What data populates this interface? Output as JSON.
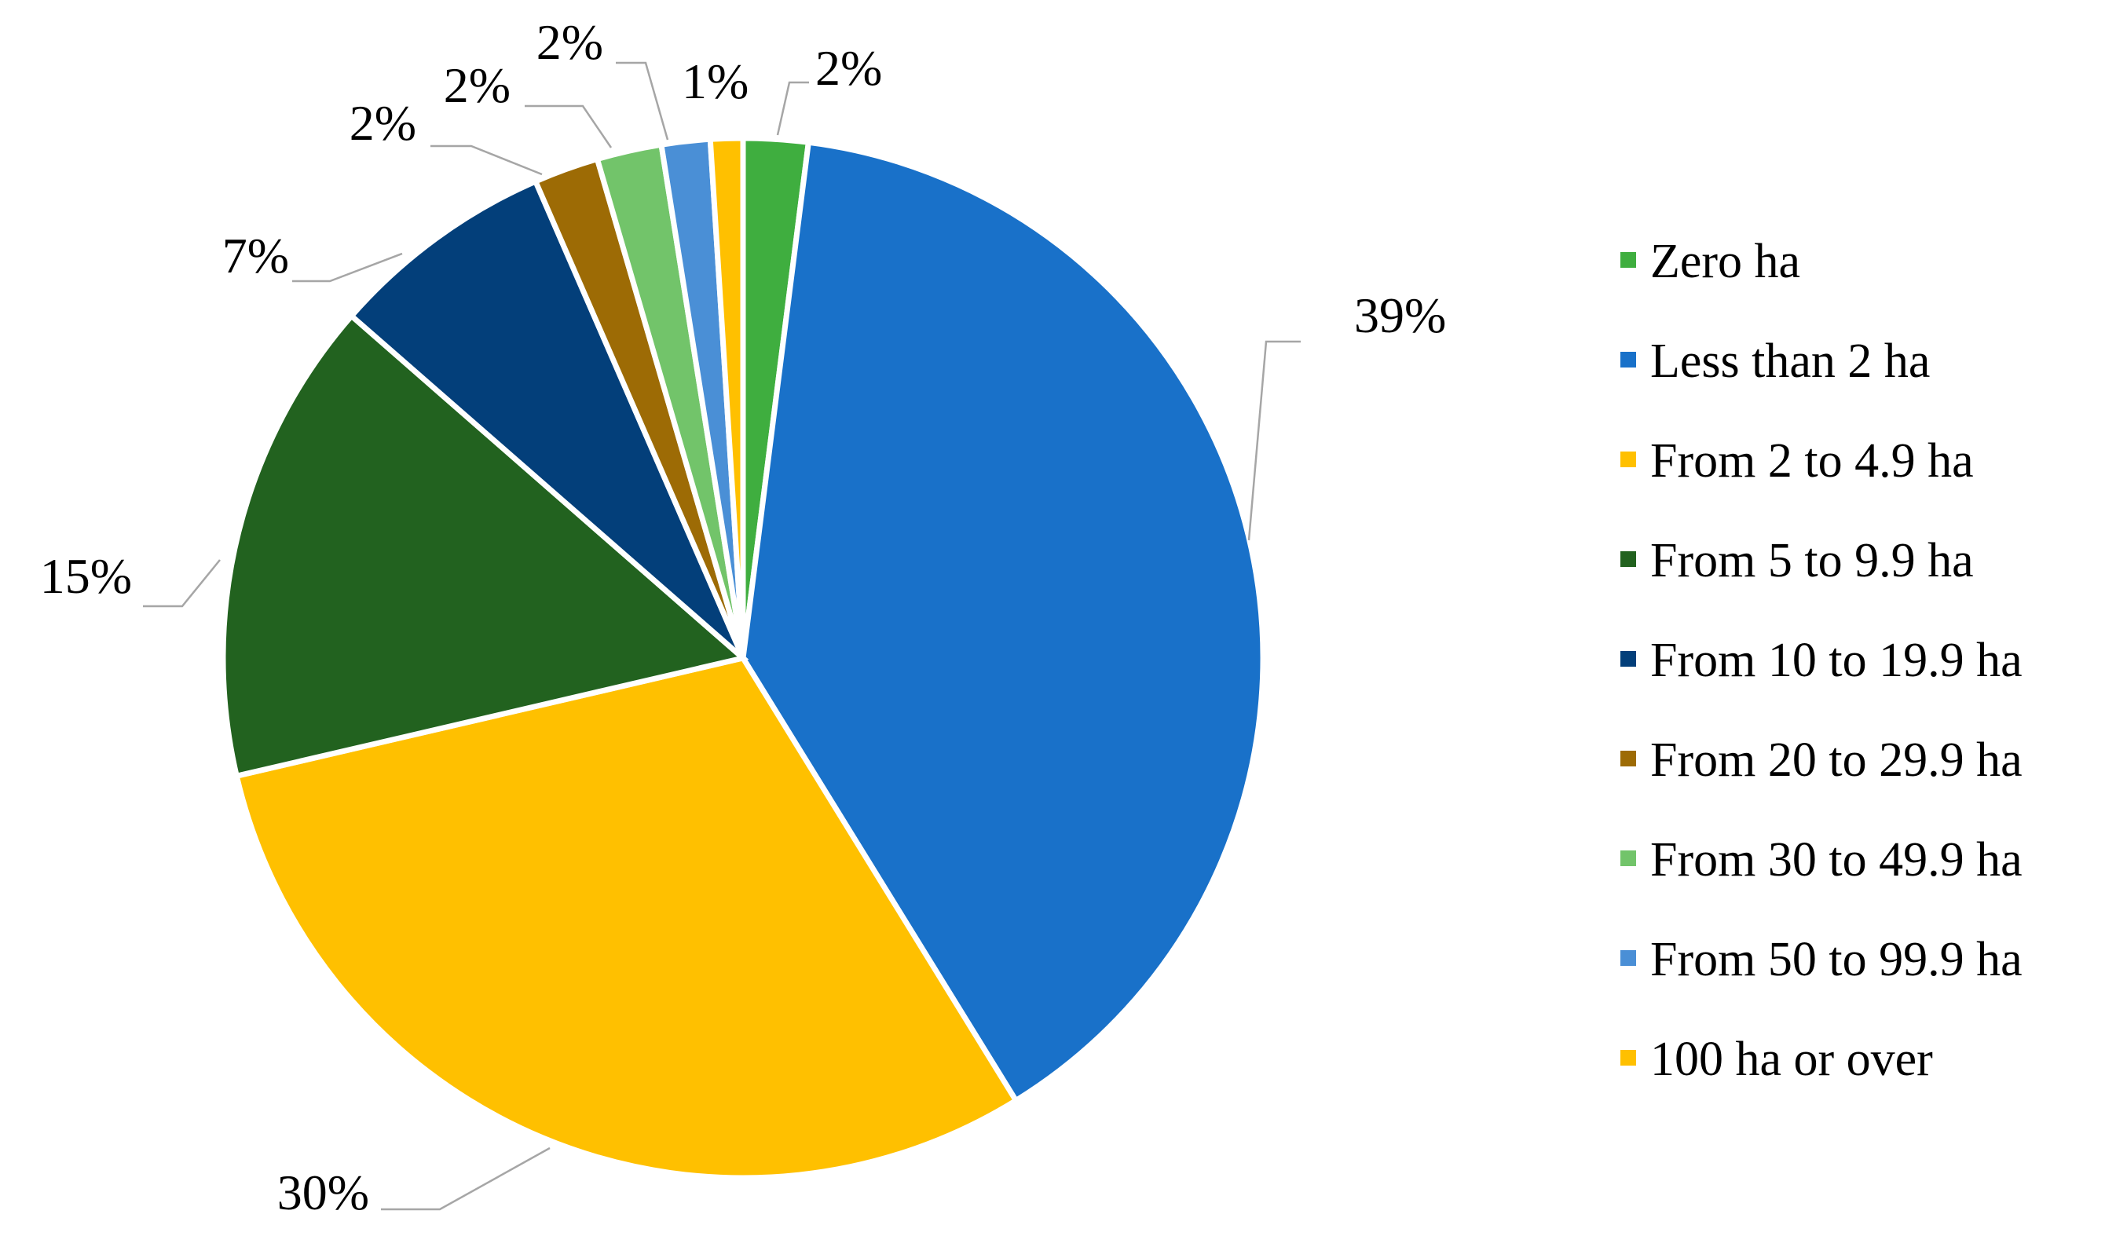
{
  "chart_data": {
    "type": "pie",
    "title": "",
    "unit": "%",
    "start_angle_deg": 0,
    "direction": "clockwise",
    "legend_position": "right",
    "slices": [
      {
        "label": "Zero ha",
        "value": 2,
        "display": "2%",
        "color": "#3fae3f"
      },
      {
        "label": "Less than 2 ha",
        "value": 39,
        "display": "39%",
        "color": "#1971c9"
      },
      {
        "label": "From 2  to 4.9 ha",
        "value": 30,
        "display": "30%",
        "color": "#ffc000"
      },
      {
        "label": "From 5  to 9.9 ha",
        "value": 15,
        "display": "15%",
        "color": "#22621f"
      },
      {
        "label": "From 10 to 19.9 ha",
        "value": 7,
        "display": "7%",
        "color": "#033f7a"
      },
      {
        "label": "From 20 to 29.9 ha",
        "value": 2,
        "display": "2%",
        "color": "#9d6b05"
      },
      {
        "label": "From 30 to 49.9 ha",
        "value": 2,
        "display": "2%",
        "color": "#72c46a"
      },
      {
        "label": "From 50 to 99.9 ha",
        "value": 1.5,
        "display": "2%",
        "color": "#4a8fd6"
      },
      {
        "label": "100 ha or over",
        "value": 1,
        "display": "1%",
        "color": "#ffc000"
      }
    ]
  }
}
